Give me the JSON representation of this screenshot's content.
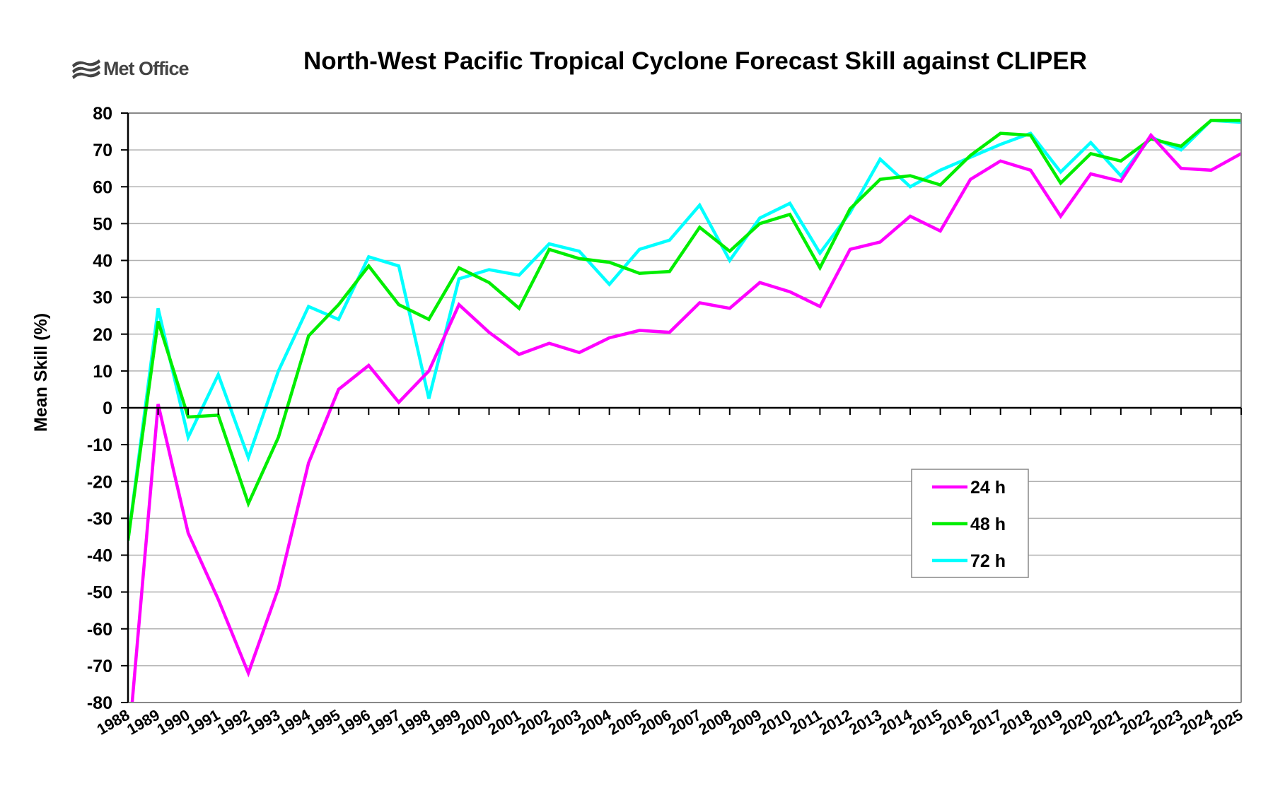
{
  "logo": {
    "text": "Met Office"
  },
  "chart_data": {
    "type": "line",
    "title": "North-West Pacific Tropical Cyclone Forecast Skill against CLIPER",
    "xlabel": "",
    "ylabel": "Mean Skill (%)",
    "ylim": [
      -80,
      80
    ],
    "yticks": [
      80,
      70,
      60,
      50,
      40,
      30,
      20,
      10,
      0,
      -10,
      -20,
      -30,
      -40,
      -50,
      -60,
      -70,
      -80
    ],
    "grid": true,
    "legend_position": "lower-right",
    "x": [
      "1988",
      "1989",
      "1990",
      "1991",
      "1992",
      "1993",
      "1994",
      "1995",
      "1996",
      "1997",
      "1998",
      "1999",
      "2000",
      "2001",
      "2002",
      "2003",
      "2004",
      "2005",
      "2006",
      "2007",
      "2008",
      "2009",
      "2010",
      "2011",
      "2012",
      "2013",
      "2014",
      "2015",
      "2016",
      "2017",
      "2018",
      "2019",
      "2020",
      "2021",
      "2022",
      "2023",
      "2024",
      "2025"
    ],
    "series": [
      {
        "name": "24 h",
        "color": "#ff00ff",
        "values": [
          -93,
          1,
          -34,
          -52,
          -72,
          -49,
          -15,
          5,
          11.5,
          1.5,
          10,
          28,
          20.5,
          14.5,
          17.5,
          15,
          19,
          21,
          20.5,
          28.5,
          27,
          34,
          31.5,
          27.5,
          43,
          45,
          52,
          48,
          62,
          67,
          64.5,
          52,
          63.5,
          61.5,
          74,
          65,
          64.5,
          69
        ]
      },
      {
        "name": "48 h",
        "color": "#00ee00",
        "values": [
          -36,
          23.5,
          -2.5,
          -2,
          -26,
          -8,
          19.5,
          28,
          38.5,
          28,
          24,
          38,
          34,
          27,
          43,
          40.5,
          39.5,
          36.5,
          37,
          49,
          42.5,
          50,
          52.5,
          38,
          54,
          62,
          63,
          60.5,
          68.5,
          74.5,
          74,
          61,
          69,
          67,
          73,
          71,
          78,
          78
        ]
      },
      {
        "name": "72 h",
        "color": "#00ffff",
        "values": [
          -36,
          27,
          -8,
          9,
          -13.5,
          10,
          27.5,
          24,
          41,
          38.5,
          2.5,
          35,
          37.5,
          36,
          44.5,
          42.5,
          33.5,
          43,
          45.5,
          55,
          40,
          51.5,
          55.5,
          42,
          53,
          67.5,
          60,
          64.5,
          68,
          71.5,
          74.5,
          64,
          72,
          63,
          73.5,
          70,
          78,
          77.5
        ]
      }
    ]
  }
}
